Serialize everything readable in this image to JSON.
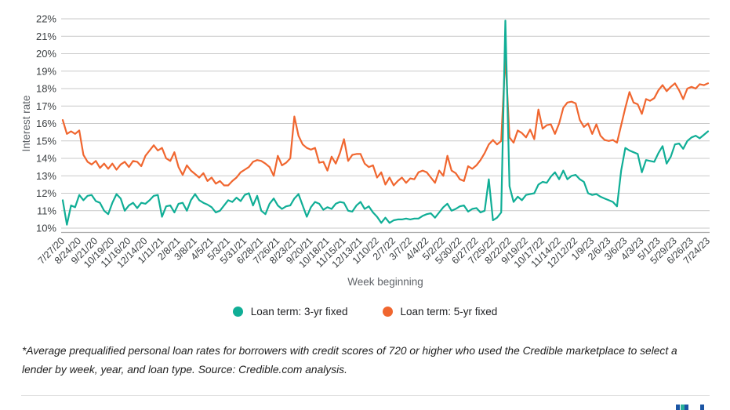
{
  "chart_data": {
    "type": "line",
    "title": "",
    "xlabel": "Week beginning",
    "ylabel": "Interest rate",
    "ylim": [
      10,
      22
    ],
    "y_tick_step": 1,
    "y_tick_suffix": "%",
    "grid": "horizontal",
    "legend_position": "bottom",
    "x_tick_every": 4,
    "x_tick_labels": [
      "7/27/20",
      "8/24/20",
      "9/21/20",
      "10/19/20",
      "11/16/20",
      "12/14/20",
      "1/11/21",
      "2/8/21",
      "3/8/21",
      "4/5/21",
      "5/3/21",
      "5/31/21",
      "6/28/21",
      "7/26/21",
      "8/23/21",
      "9/20/21",
      "10/18/21",
      "11/15/21",
      "12/13/21",
      "1/10/22",
      "2/7/22",
      "3/7/22",
      "4/4/22",
      "5/2/22",
      "5/30/22",
      "6/27/22",
      "7/25/22",
      "8/22/22",
      "9/19/22",
      "10/17/22",
      "11/14/22",
      "12/12/22",
      "1/9/23",
      "2/6/23",
      "3/6/23",
      "4/3/23",
      "5/1/23",
      "5/29/23",
      "6/26/23",
      "7/24/23"
    ],
    "series": [
      {
        "name": "Loan term: 3-yr fixed",
        "color": "#10AE96",
        "values": [
          11.6,
          10.2,
          11.3,
          11.2,
          11.9,
          11.6,
          11.85,
          11.9,
          11.55,
          11.45,
          11.0,
          10.8,
          11.45,
          11.95,
          11.7,
          11.0,
          11.3,
          11.45,
          11.15,
          11.45,
          11.4,
          11.6,
          11.85,
          11.9,
          10.65,
          11.25,
          11.3,
          10.9,
          11.4,
          11.45,
          11.0,
          11.6,
          11.95,
          11.6,
          11.45,
          11.35,
          11.2,
          10.9,
          11.0,
          11.3,
          11.6,
          11.5,
          11.75,
          11.55,
          11.9,
          12.0,
          11.3,
          11.85,
          11.0,
          10.8,
          11.4,
          11.7,
          11.3,
          11.1,
          11.25,
          11.3,
          11.7,
          11.95,
          11.3,
          10.65,
          11.2,
          11.5,
          11.4,
          11.05,
          11.2,
          11.1,
          11.4,
          11.5,
          11.45,
          11.0,
          10.95,
          11.3,
          11.5,
          11.1,
          11.25,
          10.9,
          10.65,
          10.3,
          10.6,
          10.3,
          10.45,
          10.5,
          10.5,
          10.55,
          10.5,
          10.55,
          10.55,
          10.7,
          10.8,
          10.85,
          10.6,
          10.9,
          11.2,
          11.4,
          11.0,
          11.1,
          11.25,
          11.3,
          10.95,
          11.1,
          11.15,
          10.9,
          11.0,
          12.8,
          10.45,
          10.6,
          10.9,
          21.9,
          12.4,
          11.5,
          11.8,
          11.6,
          11.9,
          11.95,
          12.0,
          12.5,
          12.65,
          12.6,
          12.95,
          13.2,
          12.8,
          13.3,
          12.8,
          13.0,
          13.05,
          12.8,
          12.65,
          12.0,
          11.9,
          11.95,
          11.8,
          11.7,
          11.6,
          11.5,
          11.25,
          13.3,
          14.6,
          14.45,
          14.35,
          14.25,
          13.2,
          13.9,
          13.85,
          13.8,
          14.3,
          14.7,
          13.7,
          14.1,
          14.8,
          14.85,
          14.55,
          15.0,
          15.2,
          15.3,
          15.15,
          15.35,
          15.55
        ]
      },
      {
        "name": "Loan term: 5-yr fixed",
        "color": "#F0662F",
        "values": [
          16.2,
          15.4,
          15.55,
          15.4,
          15.6,
          14.2,
          13.8,
          13.65,
          13.85,
          13.45,
          13.7,
          13.4,
          13.7,
          13.35,
          13.65,
          13.8,
          13.5,
          13.85,
          13.8,
          13.55,
          14.15,
          14.45,
          14.75,
          14.45,
          14.6,
          14.0,
          13.85,
          14.35,
          13.5,
          13.05,
          13.6,
          13.3,
          13.1,
          12.9,
          13.15,
          12.7,
          12.9,
          12.55,
          12.7,
          12.45,
          12.45,
          12.7,
          12.9,
          13.2,
          13.35,
          13.5,
          13.8,
          13.9,
          13.85,
          13.7,
          13.5,
          13.0,
          14.15,
          13.6,
          13.75,
          14.0,
          16.4,
          15.3,
          14.8,
          14.6,
          14.5,
          14.6,
          13.75,
          13.8,
          13.3,
          14.1,
          13.7,
          14.3,
          15.1,
          13.85,
          14.2,
          14.25,
          14.25,
          13.7,
          13.5,
          13.6,
          12.9,
          13.2,
          12.5,
          12.9,
          12.45,
          12.7,
          12.9,
          12.6,
          12.85,
          12.8,
          13.2,
          13.3,
          13.2,
          12.9,
          12.6,
          13.3,
          13.0,
          14.15,
          13.3,
          13.15,
          12.8,
          12.7,
          13.55,
          13.4,
          13.6,
          13.9,
          14.3,
          14.8,
          15.05,
          14.8,
          15.0,
          19.9,
          15.2,
          14.9,
          15.6,
          15.45,
          15.2,
          15.65,
          15.1,
          16.8,
          15.7,
          15.9,
          15.95,
          15.4,
          16.0,
          16.9,
          17.2,
          17.25,
          17.15,
          16.2,
          15.8,
          16.0,
          15.4,
          15.95,
          15.3,
          15.05,
          15.0,
          15.05,
          14.9,
          15.9,
          16.9,
          17.8,
          17.2,
          17.1,
          16.55,
          17.4,
          17.3,
          17.45,
          17.9,
          18.2,
          17.85,
          18.1,
          18.3,
          17.9,
          17.4,
          18.0,
          18.1,
          18.0,
          18.25,
          18.2,
          18.3
        ]
      }
    ]
  },
  "axes": {
    "x_title": "Week beginning",
    "y_title": "Interest rate"
  },
  "footnote": {
    "text": "*Average prequalified personal loan rates for borrowers with credit scores of 720 or higher who used the Credible marketplace to select a lender by week, year, and loan type. Source: Credible.com analysis."
  },
  "colors": {
    "gridline": "#c9c9c9",
    "axis_line": "#a9a9a9",
    "tick_label": "#3c4043",
    "axis_title": "#5f6368",
    "teal": "#10AE96",
    "orange": "#F0662F"
  },
  "logo": {
    "name": "credible-logo-fragment",
    "squares": [
      {
        "x": 0,
        "color": "#1b55a4"
      },
      {
        "x": 5.5,
        "color": "#2ab09b"
      },
      {
        "x": 11,
        "color": "#1b55a4"
      },
      {
        "x": 31,
        "color": "#1b55a4"
      }
    ]
  }
}
